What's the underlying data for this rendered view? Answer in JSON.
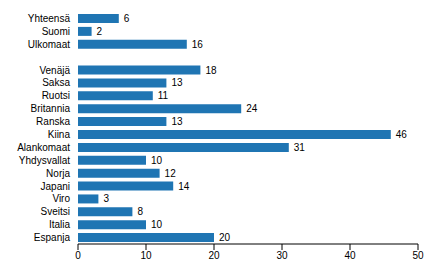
{
  "chart_data": {
    "type": "bar",
    "orientation": "horizontal",
    "categories": [
      "Yhteensä",
      "Suomi",
      "Ulkomaat",
      null,
      "Venäjä",
      "Saksa",
      "Ruotsi",
      "Britannia",
      "Ranska",
      "Kiina",
      "Alankomaat",
      "Yhdysvallat",
      "Norja",
      "Japani",
      "Viro",
      "Sveitsi",
      "Italia",
      "Espanja"
    ],
    "values": [
      6,
      2,
      16,
      null,
      18,
      13,
      11,
      24,
      13,
      46,
      31,
      10,
      12,
      14,
      3,
      8,
      10,
      20
    ],
    "color": "#1f75b3",
    "xlim": [
      0,
      50
    ],
    "xticks": [
      0,
      10,
      20,
      30,
      40,
      50
    ],
    "grid": false,
    "data_labels": true
  }
}
